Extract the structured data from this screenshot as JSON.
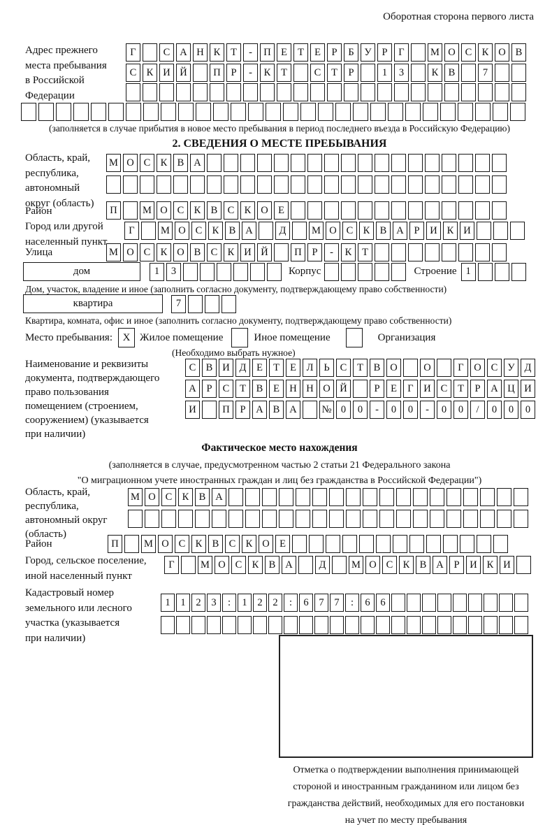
{
  "page": {
    "header_note": "Оборотная сторона первого листа"
  },
  "prev_address": {
    "label": "Адрес прежнего\nместа пребывания\nв Российской\nФедерации",
    "rows": [
      {
        "text": "Г САНКТ-ПЕТЕРБУРГ МОСКОВ",
        "len": 24
      },
      {
        "text": "СКИЙ ПР-КТ СТР 13 КВ 7",
        "len": 24
      },
      {
        "text": "",
        "len": 24
      },
      {
        "text": "",
        "len": 29
      }
    ],
    "note": "(заполняется в случае прибытия в новое место пребывания в период последнего въезда в Российскую Федерацию)"
  },
  "section2": {
    "title": "2. СВЕДЕНИЯ О МЕСТЕ ПРЕБЫВАНИЯ",
    "oblast": {
      "label": "Область, край,\nреспублика,\nавтономный\nокруг (область)",
      "rows": [
        {
          "text": "МОСКВА",
          "len": 24
        },
        {
          "text": "",
          "len": 24
        }
      ]
    },
    "raion": {
      "label": "Район",
      "row": {
        "text": "П МОСКВСКОЕ",
        "len": 24
      }
    },
    "gorod": {
      "label": "Город или другой\nнаселенный пункт",
      "row": {
        "text": "Г МОСКВА Д МОСКВАРИКИ",
        "len": 24
      }
    },
    "ulitsa": {
      "label": "Улица",
      "row": {
        "text": "МОСКОВСКИЙ ПР-КТ",
        "len": 24
      }
    },
    "dom": {
      "box_label": "дом",
      "cells": {
        "text": "13",
        "len": 8
      },
      "korpus_label": "Корпус",
      "korpus_cells": {
        "text": "",
        "len": 5
      },
      "stroenie_label": "Строение",
      "stroenie_cells": {
        "text": "1",
        "len": 4
      }
    },
    "dom_note": "Дом, участок, владение и иное (заполнить согласно документу, подтверждающему право собственности)",
    "kvartira": {
      "box_label": "квартира",
      "cells": {
        "text": "7",
        "len": 4
      }
    },
    "kvartira_note": "Квартира, комната, офис и иное (заполнить согласно документу, подтверждающему право собственности)",
    "mesto": {
      "label": "Место пребывания:",
      "options": [
        {
          "label": "Жилое помещение",
          "checked": "X"
        },
        {
          "label": "Иное помещение",
          "checked": ""
        },
        {
          "label": "Организация",
          "checked": ""
        }
      ],
      "note": "(Необходимо выбрать нужное)"
    },
    "document": {
      "label": "Наименование и реквизиты\nдокумента, подтверждающего\nправо пользования\nпомещением (строением,\nсооружением) (указывается\nпри наличии)",
      "rows": [
        {
          "text": "СВИДЕТЕЛЬСТВО О ГОСУД",
          "len": 21
        },
        {
          "text": "АРСТВЕННОЙ РЕГИСТРАЦИ",
          "len": 21
        },
        {
          "text": "И ПРАВА №00-00-00/000",
          "len": 21
        }
      ]
    }
  },
  "fact": {
    "title": "Фактическое место нахождения",
    "note_line1": "(заполняется в случае, предусмотренном частью 2 статьи 21 Федерального закона",
    "note_line2": "\"О миграционном учете иностранных граждан и лиц без гражданства в Российской Федерации\")",
    "oblast": {
      "label": "Область, край,\nреспублика,\nавтономный округ\n(область)",
      "rows": [
        {
          "text": "МОСКВА",
          "len": 24
        },
        {
          "text": "",
          "len": 24
        }
      ]
    },
    "raion": {
      "label": "Район",
      "row": {
        "text": "П МОСКВСКОЕ",
        "len": 24
      }
    },
    "gorod": {
      "label": "Город, сельское поселение,\nиной населенный пункт",
      "row": {
        "text": "Г МОСКВА Д МОСКВАРИКИ",
        "len": 22
      }
    },
    "cadastre": {
      "label": "Кадастровый номер\nземельного или лесного\nучастка (указывается\nпри наличии)",
      "rows": [
        {
          "text": "1123:122:677:66",
          "len": 24
        },
        {
          "text": "",
          "len": 24
        }
      ]
    },
    "stamp_caption": "Отметка о подтверждении выполнения принимающей\nстороной и иностранным гражданином или лицом без\nгражданства действий, необходимых для его постановки\nна учет по месту пребывания"
  }
}
